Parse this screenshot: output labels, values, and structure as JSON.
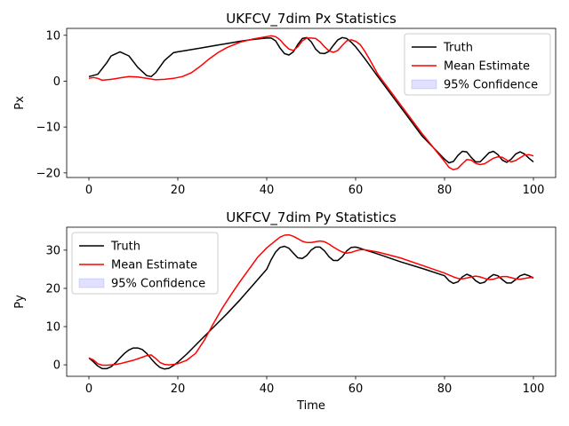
{
  "chart_data": [
    {
      "type": "line",
      "title": "UKFCV_7dim Px Statistics",
      "xlabel": "",
      "ylabel": "Px",
      "xlim": [
        -5,
        105
      ],
      "ylim": [
        -21,
        11.5
      ],
      "xticks": [
        0,
        20,
        40,
        60,
        80,
        100
      ],
      "yticks": [
        -20,
        -10,
        0,
        10
      ],
      "xtick_labels": [
        "0",
        "20",
        "40",
        "60",
        "80",
        "100"
      ],
      "ytick_labels": [
        "−20",
        "−10",
        "0",
        "10"
      ],
      "legend_position": "top-right",
      "legend": [
        "Truth",
        "Mean Estimate",
        "95% Confidence"
      ],
      "series": [
        {
          "name": "Truth",
          "color": "#000000",
          "x": [
            0,
            2,
            4,
            5,
            7,
            9,
            11,
            13,
            14,
            15,
            17,
            19,
            20,
            22,
            25,
            28,
            31,
            34,
            37,
            40,
            41,
            42,
            43,
            44,
            45,
            46,
            47,
            48,
            49,
            50,
            51,
            52,
            53,
            54,
            55,
            56,
            57,
            58,
            59,
            60,
            62,
            65,
            70,
            75,
            80,
            81,
            82,
            83,
            84,
            85,
            86,
            87,
            88,
            89,
            90,
            91,
            92,
            93,
            94,
            95,
            96,
            97,
            98,
            99,
            100
          ],
          "y": [
            1.0,
            1.5,
            4.0,
            5.5,
            6.4,
            5.5,
            3.0,
            1.2,
            1.0,
            1.8,
            4.5,
            6.2,
            6.4,
            6.7,
            7.2,
            7.7,
            8.2,
            8.7,
            9.1,
            9.4,
            9.4,
            8.8,
            7.2,
            6.0,
            5.7,
            6.4,
            8.0,
            9.3,
            9.5,
            8.6,
            7.0,
            6.1,
            6.0,
            6.5,
            7.8,
            9.0,
            9.5,
            9.3,
            8.5,
            7.5,
            5.0,
            1.0,
            -5.5,
            -12.0,
            -17.0,
            -17.8,
            -17.5,
            -16.2,
            -15.3,
            -15.4,
            -16.6,
            -17.6,
            -17.6,
            -16.6,
            -15.6,
            -15.3,
            -16.0,
            -17.2,
            -17.7,
            -17.0,
            -15.9,
            -15.4,
            -15.9,
            -16.8,
            -17.6
          ]
        },
        {
          "name": "Mean Estimate",
          "color": "#ff0000",
          "x": [
            0,
            1,
            2,
            3,
            5,
            7,
            9,
            11,
            13,
            15,
            17,
            19,
            21,
            23,
            25,
            27,
            29,
            31,
            34,
            37,
            40,
            41,
            42,
            43,
            44,
            45,
            46,
            47,
            48,
            49,
            50,
            51,
            52,
            53,
            54,
            55,
            56,
            57,
            58,
            59,
            60,
            61,
            62,
            63,
            65,
            70,
            75,
            80,
            81,
            82,
            83,
            84,
            85,
            86,
            87,
            88,
            89,
            90,
            91,
            92,
            93,
            94,
            95,
            96,
            97,
            98,
            99,
            100
          ],
          "y": [
            0.6,
            0.8,
            0.6,
            0.2,
            0.4,
            0.7,
            1.0,
            0.9,
            0.6,
            0.3,
            0.4,
            0.6,
            1.0,
            1.8,
            3.2,
            4.8,
            6.2,
            7.3,
            8.5,
            9.2,
            9.7,
            9.9,
            9.7,
            9.0,
            7.9,
            7.0,
            6.7,
            7.5,
            8.8,
            9.4,
            9.4,
            9.3,
            8.6,
            7.5,
            6.6,
            6.3,
            6.7,
            7.8,
            8.8,
            9.0,
            8.7,
            8.0,
            6.6,
            5.0,
            1.5,
            -5.0,
            -11.5,
            -17.5,
            -18.8,
            -19.3,
            -19.0,
            -18.0,
            -17.1,
            -17.2,
            -17.9,
            -18.2,
            -18.0,
            -17.4,
            -16.8,
            -16.5,
            -16.6,
            -17.2,
            -17.6,
            -17.3,
            -16.7,
            -16.1,
            -16.0,
            -16.3
          ]
        }
      ]
    },
    {
      "type": "line",
      "title": "UKFCV_7dim Py Statistics",
      "xlabel": "Time",
      "ylabel": "Py",
      "xlim": [
        -5,
        105
      ],
      "ylim": [
        -3,
        36
      ],
      "xticks": [
        0,
        20,
        40,
        60,
        80,
        100
      ],
      "yticks": [
        0,
        10,
        20,
        30
      ],
      "xtick_labels": [
        "0",
        "20",
        "40",
        "60",
        "80",
        "100"
      ],
      "ytick_labels": [
        "0",
        "10",
        "20",
        "30"
      ],
      "legend_position": "top-left",
      "legend": [
        "Truth",
        "Mean Estimate",
        "95% Confidence"
      ],
      "series": [
        {
          "name": "Truth",
          "color": "#000000",
          "x": [
            0,
            1,
            2,
            3,
            4,
            5,
            6,
            7,
            8,
            9,
            10,
            11,
            12,
            13,
            14,
            15,
            16,
            17,
            18,
            19,
            20,
            22,
            25,
            28,
            31,
            34,
            37,
            40,
            41,
            42,
            43,
            44,
            45,
            46,
            47,
            48,
            49,
            50,
            51,
            52,
            53,
            54,
            55,
            56,
            57,
            58,
            59,
            60,
            61,
            62,
            65,
            70,
            75,
            80,
            81,
            82,
            83,
            84,
            85,
            86,
            87,
            88,
            89,
            90,
            91,
            92,
            93,
            94,
            95,
            96,
            97,
            98,
            99,
            100
          ],
          "y": [
            1.8,
            0.8,
            -0.3,
            -1.0,
            -1.0,
            -0.5,
            0.5,
            1.8,
            3.0,
            3.9,
            4.4,
            4.4,
            4.0,
            3.0,
            1.6,
            0.3,
            -0.7,
            -1.1,
            -0.9,
            -0.2,
            0.7,
            2.8,
            6.3,
            9.8,
            13.3,
            17.0,
            21.0,
            25.0,
            27.5,
            29.5,
            30.7,
            31.0,
            30.5,
            29.2,
            28.0,
            27.8,
            28.6,
            30.0,
            30.8,
            30.8,
            29.8,
            28.3,
            27.3,
            27.3,
            28.3,
            29.8,
            30.7,
            30.8,
            30.5,
            30.1,
            29.0,
            27.0,
            25.2,
            23.3,
            22.0,
            21.3,
            21.7,
            23.0,
            23.7,
            23.2,
            22.0,
            21.3,
            21.6,
            22.8,
            23.6,
            23.3,
            22.3,
            21.4,
            21.4,
            22.3,
            23.3,
            23.7,
            23.3,
            22.7
          ]
        },
        {
          "name": "Mean Estimate",
          "color": "#ff0000",
          "x": [
            0,
            1,
            2,
            3,
            4,
            5,
            6,
            7,
            8,
            10,
            12,
            13,
            14,
            15,
            16,
            17,
            18,
            19,
            20,
            22,
            24,
            26,
            28,
            30,
            32,
            34,
            36,
            38,
            40,
            42,
            43,
            44,
            45,
            46,
            47,
            48,
            49,
            50,
            51,
            52,
            53,
            54,
            55,
            56,
            57,
            58,
            59,
            60,
            61,
            62,
            65,
            70,
            75,
            80,
            81,
            82,
            83,
            84,
            85,
            86,
            87,
            88,
            89,
            90,
            91,
            92,
            93,
            94,
            95,
            96,
            97,
            98,
            99,
            100
          ],
          "y": [
            1.8,
            1.3,
            0.3,
            -0.1,
            -0.1,
            0.0,
            0.1,
            0.3,
            0.6,
            1.2,
            2.0,
            2.4,
            2.6,
            1.7,
            0.6,
            0.1,
            0.0,
            0.1,
            0.3,
            1.2,
            3.0,
            6.5,
            10.8,
            14.8,
            18.4,
            21.8,
            25.0,
            28.2,
            30.6,
            32.5,
            33.4,
            33.9,
            34.0,
            33.6,
            33.0,
            32.3,
            32.0,
            32.0,
            32.2,
            32.4,
            32.2,
            31.6,
            30.8,
            30.1,
            29.5,
            29.2,
            29.4,
            29.8,
            30.1,
            30.1,
            29.5,
            28.0,
            26.0,
            24.0,
            23.5,
            23.0,
            22.6,
            22.5,
            22.7,
            23.0,
            23.2,
            23.0,
            22.6,
            22.3,
            22.4,
            22.8,
            23.1,
            23.1,
            22.8,
            22.5,
            22.4,
            22.6,
            22.8,
            22.9
          ]
        }
      ]
    }
  ]
}
